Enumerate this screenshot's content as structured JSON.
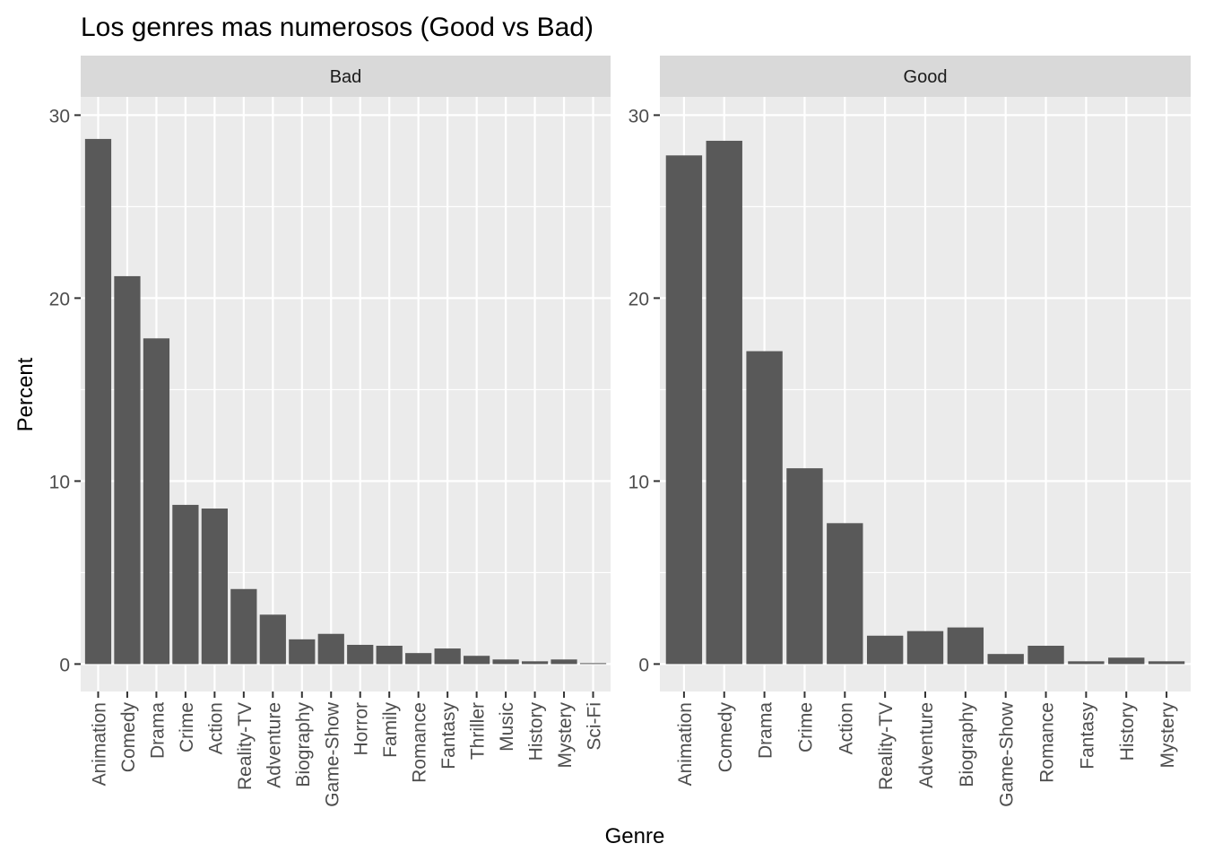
{
  "chart_data": {
    "type": "bar",
    "title": "Los genres mas numerosos (Good vs Bad)",
    "xlabel": "Genre",
    "ylabel": "Percent",
    "ylim": [
      -1.5,
      31
    ],
    "yticks": [
      0,
      10,
      20,
      30
    ],
    "grid": true,
    "colors": {
      "bar": "#595959",
      "panel": "#ebebeb",
      "strip": "#d9d9d9",
      "grid": "#ffffff"
    },
    "facets": [
      {
        "name": "Bad",
        "categories": [
          "Animation",
          "Comedy",
          "Drama",
          "Crime",
          "Action",
          "Reality-TV",
          "Adventure",
          "Biography",
          "Game-Show",
          "Horror",
          "Family",
          "Romance",
          "Fantasy",
          "Thriller",
          "Music",
          "History",
          "Mystery",
          "Sci-Fi"
        ],
        "values": [
          28.7,
          21.2,
          17.8,
          8.7,
          8.5,
          4.1,
          2.7,
          1.35,
          1.65,
          1.05,
          1.0,
          0.6,
          0.85,
          0.45,
          0.25,
          0.15,
          0.25,
          0.05
        ]
      },
      {
        "name": "Good",
        "categories": [
          "Animation",
          "Comedy",
          "Drama",
          "Crime",
          "Action",
          "Reality-TV",
          "Adventure",
          "Biography",
          "Game-Show",
          "Romance",
          "Fantasy",
          "History",
          "Mystery"
        ],
        "values": [
          27.8,
          28.6,
          17.1,
          10.7,
          7.7,
          1.55,
          1.8,
          2.0,
          0.55,
          1.0,
          0.15,
          0.35,
          0.15
        ]
      }
    ]
  }
}
